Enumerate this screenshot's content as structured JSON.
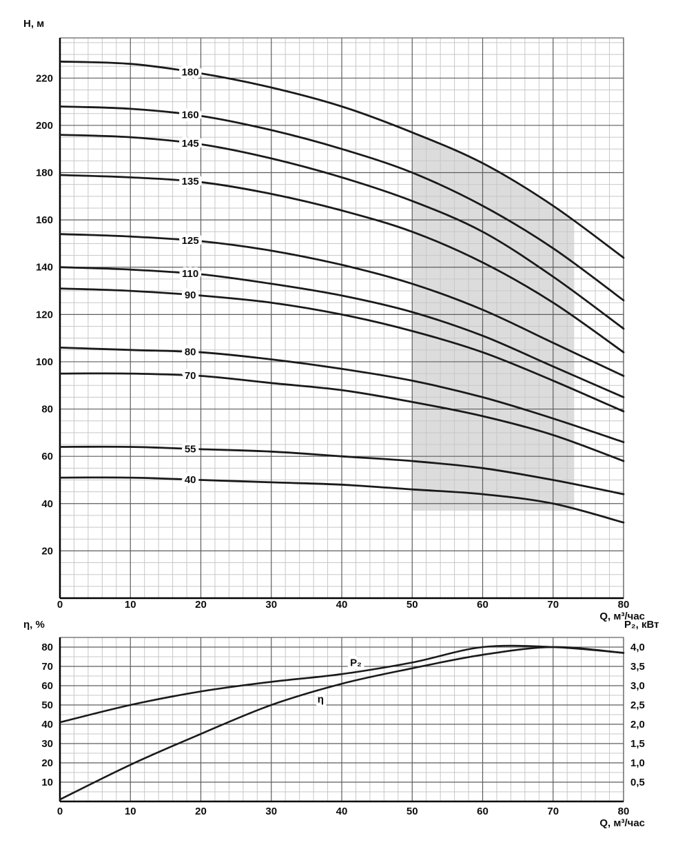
{
  "chart_data": [
    {
      "type": "line",
      "ylabel": "H, м",
      "xlabel": "Q, м³/час",
      "xlim": [
        0,
        80
      ],
      "ylim": [
        0,
        237
      ],
      "x_minor_step": 2,
      "x_major_step": 10,
      "y_minor_step": 5,
      "y_major_step": 20,
      "grid": true,
      "x_tick_values": [
        0,
        10,
        20,
        30,
        40,
        50,
        60,
        70,
        80
      ],
      "x_tick_labels": [
        "0",
        "10",
        "20",
        "30",
        "40",
        "50",
        "60",
        "70",
        "80"
      ],
      "y_tick_values": [
        20,
        40,
        60,
        80,
        100,
        120,
        140,
        160,
        180,
        200,
        220
      ],
      "y_tick_labels": [
        "20",
        "40",
        "60",
        "80",
        "100",
        "120",
        "140",
        "160",
        "180",
        "200",
        "220"
      ],
      "x": [
        0,
        10,
        20,
        30,
        40,
        50,
        60,
        70,
        80
      ],
      "series": [
        {
          "name": "180",
          "label_q": 18.5,
          "values": [
            227,
            226,
            222,
            216,
            208,
            197,
            184,
            166,
            144
          ]
        },
        {
          "name": "160",
          "label_q": 18.5,
          "values": [
            208,
            207,
            204,
            198,
            190,
            180,
            166,
            148,
            126
          ]
        },
        {
          "name": "145",
          "label_q": 18.5,
          "values": [
            196,
            195,
            192,
            186,
            178,
            168,
            155,
            136,
            114
          ]
        },
        {
          "name": "135",
          "label_q": 18.5,
          "values": [
            179,
            178,
            176,
            171,
            164,
            155,
            142,
            125,
            104
          ]
        },
        {
          "name": "125",
          "label_q": 18.5,
          "values": [
            154,
            153,
            151,
            147,
            141,
            133,
            122,
            108,
            94
          ]
        },
        {
          "name": "110",
          "label_q": 18.5,
          "values": [
            140,
            139,
            137,
            133,
            128,
            121,
            111,
            98,
            85
          ]
        },
        {
          "name": "90",
          "label_q": 18.5,
          "values": [
            131,
            130,
            128,
            125,
            120,
            113,
            104,
            92,
            79
          ]
        },
        {
          "name": "80",
          "label_q": 18.5,
          "values": [
            106,
            105,
            104,
            101,
            97,
            92,
            85,
            76,
            66
          ]
        },
        {
          "name": "70",
          "label_q": 18.5,
          "values": [
            95,
            95,
            94,
            91,
            88,
            83,
            77,
            69,
            58
          ]
        },
        {
          "name": "55",
          "label_q": 18.5,
          "values": [
            64,
            64,
            63,
            62,
            60,
            58,
            55,
            50,
            44
          ]
        },
        {
          "name": "40",
          "label_q": 18.5,
          "values": [
            51,
            51,
            50,
            49,
            48,
            46,
            44,
            40,
            32
          ]
        }
      ],
      "highlight_region": {
        "q_start": 50,
        "q_end": 73,
        "h_bottom": 37,
        "top_series": "180",
        "fill": "#dcdcdc"
      },
      "line_color": "#1a1a1a"
    },
    {
      "type": "line",
      "ylabel_left": "η, %",
      "ylabel_right": "P₂, кВт",
      "xlabel": "Q, м³/час",
      "xlim": [
        0,
        80
      ],
      "ylim_left": [
        0,
        85
      ],
      "ylim_right": [
        0,
        4.25
      ],
      "x_minor_step": 2,
      "x_major_step": 10,
      "y_minor_step": 5,
      "y_major_step": 10,
      "grid": true,
      "x_tick_values": [
        0,
        10,
        20,
        30,
        40,
        50,
        60,
        70,
        80
      ],
      "x_tick_labels": [
        "0",
        "10",
        "20",
        "30",
        "40",
        "50",
        "60",
        "70",
        "80"
      ],
      "y_left_tick_values": [
        10,
        20,
        30,
        40,
        50,
        60,
        70,
        80
      ],
      "y_left_tick_labels": [
        "10",
        "20",
        "30",
        "40",
        "50",
        "60",
        "70",
        "80"
      ],
      "y_right_tick_values": [
        0.5,
        1.0,
        1.5,
        2.0,
        2.5,
        3.0,
        3.5,
        4.0
      ],
      "y_right_tick_labels": [
        "0,5",
        "1,0",
        "1,5",
        "2,0",
        "2,5",
        "3,0",
        "3,5",
        "4,0"
      ],
      "x": [
        0,
        10,
        20,
        30,
        40,
        50,
        60,
        70,
        80
      ],
      "series": [
        {
          "name": "η",
          "axis": "left",
          "values": [
            1,
            19,
            35,
            50,
            61,
            69,
            76,
            80,
            77
          ],
          "label_at": {
            "q": 37,
            "v": 53
          }
        },
        {
          "name": "P₂",
          "axis": "right",
          "values": [
            2.05,
            2.5,
            2.85,
            3.1,
            3.3,
            3.6,
            4.0,
            4.0,
            3.85
          ],
          "label_at": {
            "q": 42,
            "v": 3.6
          }
        }
      ],
      "line_color": "#1a1a1a"
    }
  ]
}
